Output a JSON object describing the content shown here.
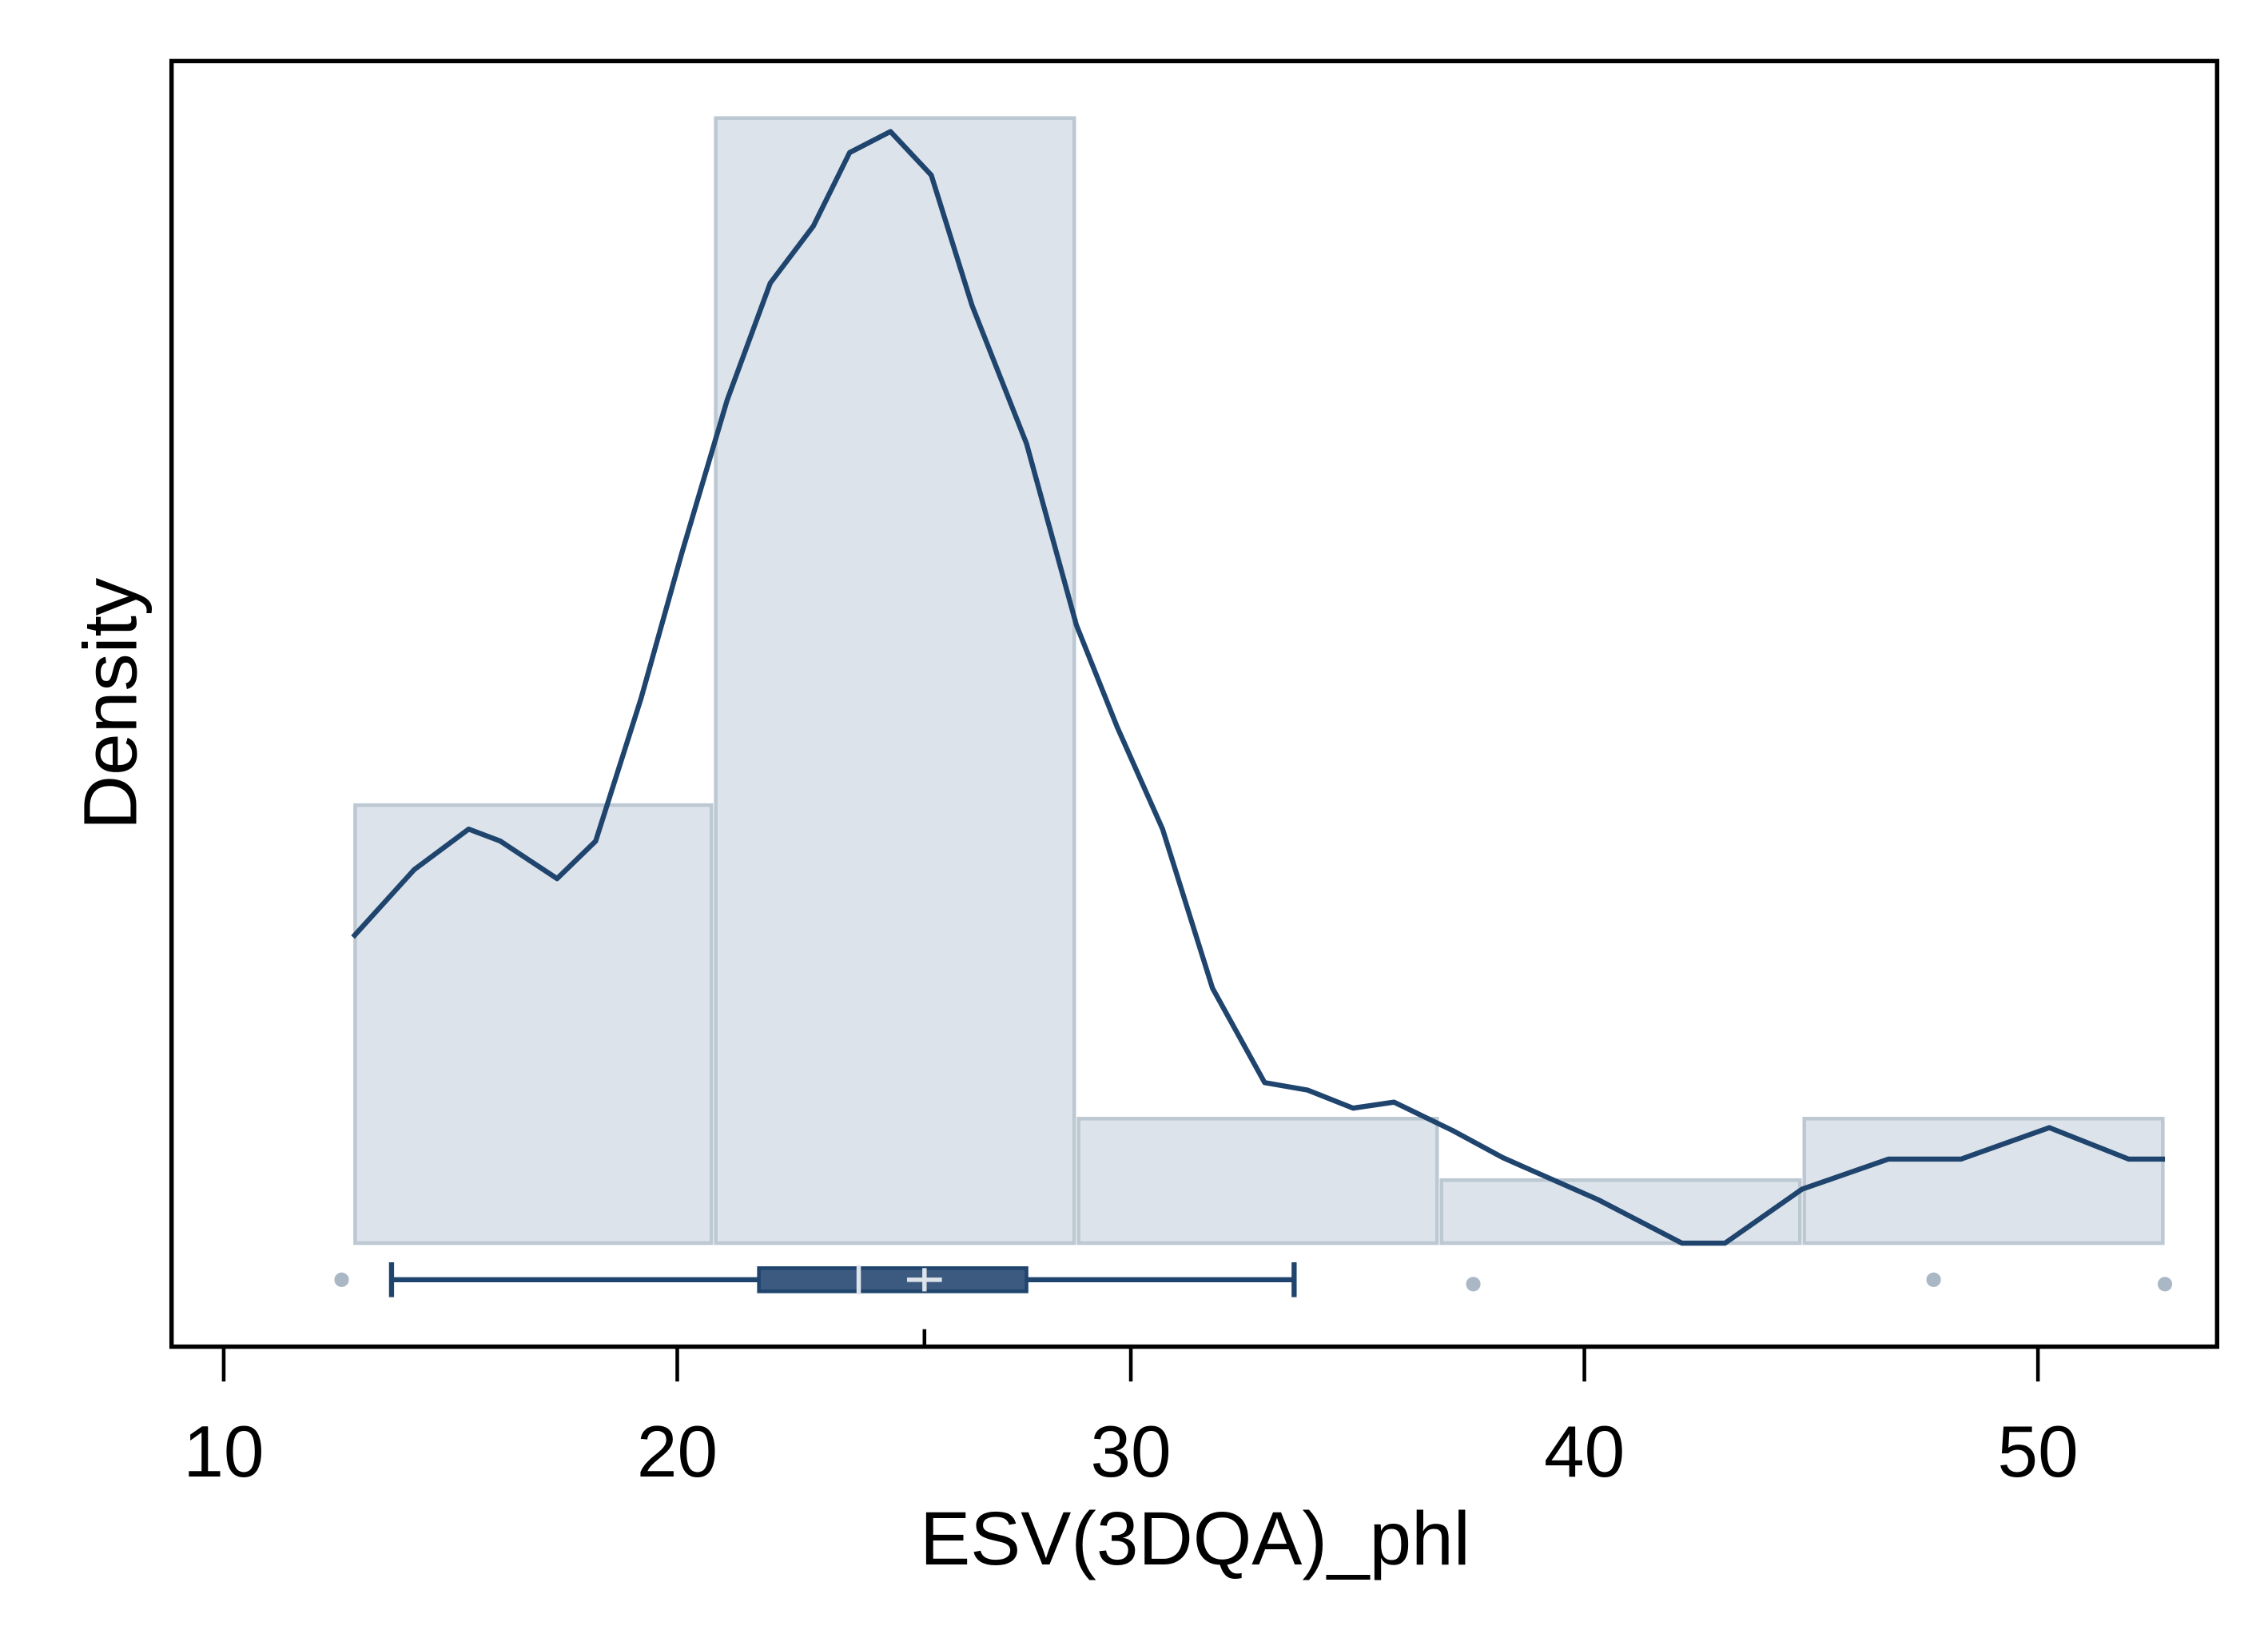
{
  "chart_data": {
    "type": "histogram",
    "x_label": "ESV(3DQA)_phl",
    "y_label": "Density",
    "bins": [
      12.85,
      20.8,
      28.8,
      36.8,
      44.8,
      52.8
    ],
    "values": [
      0.0292,
      0.075,
      0.0083,
      0.0042,
      0.0083
    ],
    "color": "#dde3ea",
    "edge_color": "#bcc8d2",
    "density": {
      "color": "#1f456e",
      "x": [
        12.85,
        14.2,
        15.4,
        16.1,
        17.35,
        18.2,
        19.2,
        20.1,
        21.1,
        22.05,
        23.0,
        23.8,
        24.7,
        25.6,
        26.5,
        27.7,
        28.8,
        29.7,
        30.7,
        31.8,
        32.95,
        33.9,
        34.9,
        35.8,
        37.1,
        38.2,
        40.3,
        42.15,
        43.1,
        44.8,
        46.7,
        48.3,
        50.25,
        52.0,
        52.8
      ],
      "values": [
        0.0204,
        0.0249,
        0.0276,
        0.0268,
        0.0243,
        0.0268,
        0.0363,
        0.046,
        0.0562,
        0.064,
        0.0678,
        0.0727,
        0.0741,
        0.0712,
        0.0625,
        0.0533,
        0.0412,
        0.0344,
        0.0276,
        0.017,
        0.0107,
        0.0102,
        0.009,
        0.0094,
        0.0075,
        0.0057,
        0.0029,
        0,
        0,
        0.0036,
        0.0056,
        0.0056,
        0.0077,
        0.0056,
        0.0056
      ]
    },
    "boxplot": {
      "color": "#3c5a80",
      "whisker_low": 13.7,
      "q1": 21.8,
      "median": 24.0,
      "mean": 25.45,
      "q3": 27.7,
      "whisker_high": 33.6,
      "outliers": [
        12.6,
        37.55,
        47.7,
        52.8
      ],
      "outlier_color": "#aab8c6"
    },
    "xlim": [
      8.85,
      53.95
    ],
    "xticks": [
      10,
      20,
      30,
      40,
      50
    ],
    "ylim": [
      -0.0069,
      0.0788
    ]
  }
}
